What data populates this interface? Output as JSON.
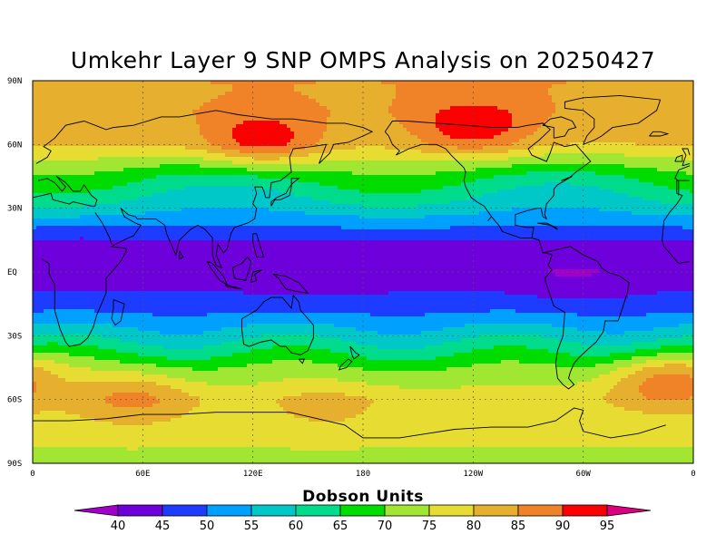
{
  "title": "Umkehr Layer 9 SNP OMPS Analysis on 20250427",
  "colorbar_title": "Dobson Units",
  "lat_ticks": [
    "90N",
    "60N",
    "30N",
    "EQ",
    "30S",
    "60S",
    "90S"
  ],
  "lon_ticks": [
    "0",
    "60E",
    "120E",
    "180",
    "120W",
    "60W",
    "0"
  ],
  "levels": [
    40,
    45,
    50,
    55,
    60,
    65,
    70,
    75,
    80,
    85,
    90,
    95
  ],
  "level_labels": [
    "40",
    "45",
    "50",
    "55",
    "60",
    "65",
    "70",
    "75",
    "80",
    "85",
    "90",
    "95"
  ],
  "colors": [
    "#a000c8",
    "#6e00dc",
    "#1e3cff",
    "#00a0ff",
    "#00c8c8",
    "#00dc8c",
    "#00dc00",
    "#a0e632",
    "#e6dc32",
    "#e6af2d",
    "#f08228",
    "#fa0000",
    "#dc0080"
  ],
  "chart_data": {
    "type": "heatmap",
    "title": "Umkehr Layer 9 SNP OMPS Analysis on 20250427",
    "units": "Dobson Units",
    "xlim": [
      0,
      360
    ],
    "ylim": [
      -90,
      90
    ],
    "lat_band_mean": [
      {
        "lat": 90,
        "value": 85
      },
      {
        "lat": 75,
        "value": 84
      },
      {
        "lat": 60,
        "value": 80
      },
      {
        "lat": 45,
        "value": 66
      },
      {
        "lat": 30,
        "value": 57
      },
      {
        "lat": 15,
        "value": 45
      },
      {
        "lat": 0,
        "value": 42
      },
      {
        "lat": -15,
        "value": 47
      },
      {
        "lat": -30,
        "value": 58
      },
      {
        "lat": -45,
        "value": 70
      },
      {
        "lat": -60,
        "value": 78
      },
      {
        "lat": -75,
        "value": 77
      },
      {
        "lat": -90,
        "value": 73
      }
    ],
    "features": [
      {
        "lon": 125,
        "lat": 62,
        "value": 93
      },
      {
        "lon": 240,
        "lat": 68,
        "value": 94
      },
      {
        "lon": 55,
        "lat": -58,
        "value": 86
      },
      {
        "lon": 160,
        "lat": -62,
        "value": 82
      },
      {
        "lon": 345,
        "lat": -50,
        "value": 87
      },
      {
        "lon": 150,
        "lat": 0,
        "value": 40
      },
      {
        "lon": 295,
        "lat": -2,
        "value": 40
      },
      {
        "lon": 25,
        "lat": 10,
        "value": 43
      }
    ]
  }
}
